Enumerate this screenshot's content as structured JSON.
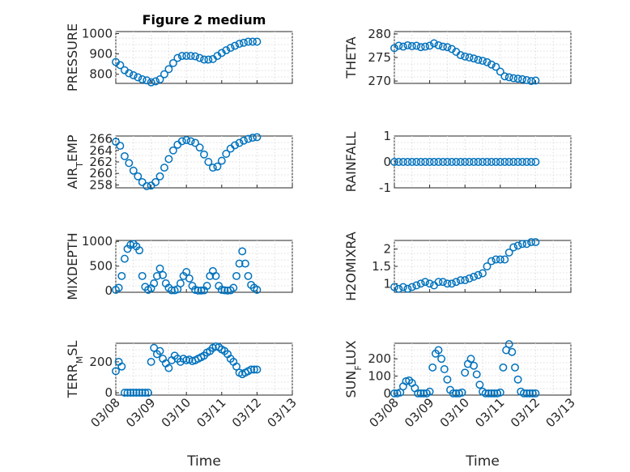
{
  "title": "Figure 2 medium",
  "xlabel": "Time",
  "x_ticks": [
    "03/08",
    "03/09",
    "03/10",
    "03/11",
    "03/12",
    "03/13"
  ],
  "colors": {
    "marker": "#0072bd",
    "axes": "#262626",
    "grid": "#dcdcdc"
  },
  "chart_data": [
    {
      "type": "scatter",
      "ylabel": "PRESSURE",
      "ylim": [
        755,
        1010
      ],
      "yticks": [
        800,
        900,
        1000
      ],
      "grid": true,
      "series": [
        {
          "x": [
            "03/08 00:00",
            "03/08 03:00",
            "03/08 06:00",
            "03/08 09:00",
            "03/08 12:00",
            "03/08 15:00",
            "03/08 18:00",
            "03/08 21:00",
            "03/09 00:00",
            "03/09 03:00",
            "03/09 06:00",
            "03/09 09:00",
            "03/09 12:00",
            "03/09 15:00",
            "03/09 18:00",
            "03/09 21:00",
            "03/10 00:00",
            "03/10 03:00",
            "03/10 06:00",
            "03/10 09:00",
            "03/10 12:00",
            "03/10 15:00",
            "03/10 18:00",
            "03/10 21:00",
            "03/11 00:00",
            "03/11 03:00",
            "03/11 06:00",
            "03/11 09:00",
            "03/11 12:00",
            "03/11 15:00",
            "03/11 18:00",
            "03/11 21:00",
            "03/12 00:00"
          ],
          "y": [
            860,
            845,
            820,
            805,
            795,
            785,
            775,
            770,
            760,
            765,
            775,
            800,
            825,
            855,
            880,
            890,
            890,
            890,
            888,
            880,
            872,
            872,
            875,
            890,
            905,
            918,
            930,
            940,
            950,
            955,
            960,
            960,
            960
          ]
        }
      ]
    },
    {
      "type": "scatter",
      "ylabel": "THETA",
      "ylim": [
        269.5,
        280.5
      ],
      "yticks": [
        270,
        275,
        280
      ],
      "grid": true,
      "series": [
        {
          "x": [
            "03/08 00:00",
            "03/08 03:00",
            "03/08 06:00",
            "03/08 09:00",
            "03/08 12:00",
            "03/08 15:00",
            "03/08 18:00",
            "03/08 21:00",
            "03/09 00:00",
            "03/09 03:00",
            "03/09 06:00",
            "03/09 09:00",
            "03/09 12:00",
            "03/09 15:00",
            "03/09 18:00",
            "03/09 21:00",
            "03/10 00:00",
            "03/10 03:00",
            "03/10 06:00",
            "03/10 09:00",
            "03/10 12:00",
            "03/10 15:00",
            "03/10 18:00",
            "03/10 21:00",
            "03/11 00:00",
            "03/11 03:00",
            "03/11 06:00",
            "03/11 09:00",
            "03/11 12:00",
            "03/11 15:00",
            "03/11 18:00",
            "03/11 21:00",
            "03/12 00:00"
          ],
          "y": [
            277,
            277.5,
            277.3,
            277.6,
            277.4,
            277.5,
            277.2,
            277.3,
            277.5,
            278,
            277.6,
            277.3,
            277.2,
            276.8,
            276.2,
            275.5,
            275.2,
            275,
            274.8,
            274.5,
            274.3,
            274,
            273.5,
            273,
            272,
            271,
            270.8,
            270.6,
            270.5,
            270.4,
            270.2,
            270,
            270.1
          ]
        }
      ]
    },
    {
      "type": "scatter",
      "ylabel": "AIR_TEMP",
      "ylim": [
        257.5,
        266.5
      ],
      "yticks": [
        258,
        260,
        262,
        264,
        266
      ],
      "grid": true,
      "series": [
        {
          "x": [
            "03/08 00:00",
            "03/08 03:00",
            "03/08 06:00",
            "03/08 09:00",
            "03/08 12:00",
            "03/08 15:00",
            "03/08 18:00",
            "03/08 21:00",
            "03/09 00:00",
            "03/09 03:00",
            "03/09 06:00",
            "03/09 09:00",
            "03/09 12:00",
            "03/09 15:00",
            "03/09 18:00",
            "03/09 21:00",
            "03/10 00:00",
            "03/10 03:00",
            "03/10 06:00",
            "03/10 09:00",
            "03/10 12:00",
            "03/10 15:00",
            "03/10 18:00",
            "03/10 21:00",
            "03/11 00:00",
            "03/11 03:00",
            "03/11 06:00",
            "03/11 09:00",
            "03/11 12:00",
            "03/11 15:00",
            "03/11 18:00",
            "03/11 21:00",
            "03/12 00:00"
          ],
          "y": [
            265.5,
            264.8,
            263,
            261.8,
            260.5,
            259.5,
            258.5,
            257.8,
            257.9,
            258.5,
            259.5,
            261,
            262.5,
            264,
            265,
            265.6,
            265.8,
            265.6,
            265.3,
            264.5,
            263.3,
            262,
            261,
            261.2,
            262.2,
            263.4,
            264.3,
            264.9,
            265.3,
            265.7,
            266,
            266.2,
            266.3
          ]
        }
      ]
    },
    {
      "type": "scatter",
      "ylabel": "RAINFALL",
      "ylim": [
        -1,
        1
      ],
      "yticks": [
        -1,
        0,
        1
      ],
      "grid": true,
      "series": [
        {
          "x": [
            "03/08 00:00",
            "03/08 03:00",
            "03/08 06:00",
            "03/08 09:00",
            "03/08 12:00",
            "03/08 15:00",
            "03/08 18:00",
            "03/08 21:00",
            "03/09 00:00",
            "03/09 03:00",
            "03/09 06:00",
            "03/09 09:00",
            "03/09 12:00",
            "03/09 15:00",
            "03/09 18:00",
            "03/09 21:00",
            "03/10 00:00",
            "03/10 03:00",
            "03/10 06:00",
            "03/10 09:00",
            "03/10 12:00",
            "03/10 15:00",
            "03/10 18:00",
            "03/10 21:00",
            "03/11 00:00",
            "03/11 03:00",
            "03/11 06:00",
            "03/11 09:00",
            "03/11 12:00",
            "03/11 15:00",
            "03/11 18:00",
            "03/11 21:00",
            "03/12 00:00"
          ],
          "y": [
            0,
            0,
            0,
            0,
            0,
            0,
            0,
            0,
            0,
            0,
            0,
            0,
            0,
            0,
            0,
            0,
            0,
            0,
            0,
            0,
            0,
            0,
            0,
            0,
            0,
            0,
            0,
            0,
            0,
            0,
            0,
            0,
            0
          ]
        }
      ]
    },
    {
      "type": "scatter",
      "ylabel": "MIXDEPTH",
      "ylim": [
        -30,
        1020
      ],
      "yticks": [
        0,
        500,
        1000
      ],
      "grid": true,
      "series": [
        {
          "x": [
            "03/08 00:00",
            "03/08 02:00",
            "03/08 04:00",
            "03/08 06:00",
            "03/08 08:00",
            "03/08 10:00",
            "03/08 12:00",
            "03/08 14:00",
            "03/08 16:00",
            "03/08 18:00",
            "03/08 20:00",
            "03/08 22:00",
            "03/09 00:00",
            "03/09 02:00",
            "03/09 04:00",
            "03/09 06:00",
            "03/09 08:00",
            "03/09 10:00",
            "03/09 12:00",
            "03/09 14:00",
            "03/09 16:00",
            "03/09 18:00",
            "03/09 20:00",
            "03/09 22:00",
            "03/10 00:00",
            "03/10 02:00",
            "03/10 04:00",
            "03/10 06:00",
            "03/10 08:00",
            "03/10 10:00",
            "03/10 12:00",
            "03/10 14:00",
            "03/10 16:00",
            "03/10 18:00",
            "03/10 20:00",
            "03/10 22:00",
            "03/11 00:00",
            "03/11 02:00",
            "03/11 04:00",
            "03/11 06:00",
            "03/11 08:00",
            "03/11 10:00",
            "03/11 12:00",
            "03/11 14:00",
            "03/11 16:00",
            "03/11 18:00",
            "03/11 20:00",
            "03/11 22:00",
            "03/12 00:00"
          ],
          "y": [
            20,
            60,
            300,
            650,
            850,
            930,
            950,
            900,
            820,
            300,
            80,
            20,
            50,
            150,
            300,
            450,
            320,
            150,
            60,
            10,
            10,
            30,
            150,
            300,
            380,
            250,
            100,
            20,
            5,
            5,
            10,
            100,
            300,
            400,
            300,
            100,
            20,
            10,
            5,
            10,
            60,
            300,
            550,
            800,
            550,
            300,
            120,
            60,
            20
          ]
        }
      ]
    },
    {
      "type": "scatter",
      "ylabel": "H2OMIXRA",
      "ylim": [
        0.75,
        2.25
      ],
      "yticks": [
        1,
        1.5,
        2
      ],
      "grid": true,
      "series": [
        {
          "x": [
            "03/08 00:00",
            "03/08 03:00",
            "03/08 06:00",
            "03/08 09:00",
            "03/08 12:00",
            "03/08 15:00",
            "03/08 18:00",
            "03/08 21:00",
            "03/09 00:00",
            "03/09 03:00",
            "03/09 06:00",
            "03/09 09:00",
            "03/09 12:00",
            "03/09 15:00",
            "03/09 18:00",
            "03/09 21:00",
            "03/10 00:00",
            "03/10 03:00",
            "03/10 06:00",
            "03/10 09:00",
            "03/10 12:00",
            "03/10 15:00",
            "03/10 18:00",
            "03/10 21:00",
            "03/11 00:00",
            "03/11 03:00",
            "03/11 06:00",
            "03/11 09:00",
            "03/11 12:00",
            "03/11 15:00",
            "03/11 18:00",
            "03/11 21:00",
            "03/12 00:00"
          ],
          "y": [
            0.9,
            0.85,
            0.9,
            0.85,
            0.9,
            0.95,
            1.0,
            1.05,
            1.0,
            0.95,
            1.05,
            1.05,
            1.0,
            1.0,
            1.05,
            1.1,
            1.1,
            1.15,
            1.2,
            1.25,
            1.3,
            1.5,
            1.65,
            1.7,
            1.7,
            1.7,
            1.9,
            2.05,
            2.1,
            2.15,
            2.15,
            2.2,
            2.2
          ]
        }
      ]
    },
    {
      "type": "scatter",
      "ylabel": "TERR_MSL",
      "ylim": [
        -15,
        320
      ],
      "yticks": [
        0,
        200
      ],
      "grid": true,
      "series": [
        {
          "x": [
            "03/08 00:00",
            "03/08 02:00",
            "03/08 04:00",
            "03/08 06:00",
            "03/08 08:00",
            "03/08 10:00",
            "03/08 12:00",
            "03/08 14:00",
            "03/08 16:00",
            "03/08 18:00",
            "03/08 20:00",
            "03/08 22:00",
            "03/09 00:00",
            "03/09 02:00",
            "03/09 04:00",
            "03/09 06:00",
            "03/09 08:00",
            "03/09 10:00",
            "03/09 12:00",
            "03/09 14:00",
            "03/09 16:00",
            "03/09 18:00",
            "03/09 20:00",
            "03/09 22:00",
            "03/10 00:00",
            "03/10 02:00",
            "03/10 04:00",
            "03/10 06:00",
            "03/10 08:00",
            "03/10 10:00",
            "03/10 12:00",
            "03/10 14:00",
            "03/10 16:00",
            "03/10 18:00",
            "03/10 20:00",
            "03/10 22:00",
            "03/11 00:00",
            "03/11 02:00",
            "03/11 04:00",
            "03/11 06:00",
            "03/11 08:00",
            "03/11 10:00",
            "03/11 12:00",
            "03/11 14:00",
            "03/11 16:00",
            "03/11 18:00",
            "03/11 20:00",
            "03/11 22:00",
            "03/12 00:00"
          ],
          "y": [
            140,
            200,
            170,
            0,
            0,
            0,
            0,
            0,
            0,
            0,
            0,
            0,
            200,
            290,
            250,
            270,
            220,
            190,
            160,
            210,
            240,
            220,
            200,
            220,
            210,
            215,
            205,
            210,
            220,
            230,
            240,
            260,
            270,
            290,
            300,
            295,
            280,
            270,
            250,
            220,
            200,
            170,
            130,
            120,
            130,
            140,
            150,
            150,
            150
          ]
        }
      ]
    },
    {
      "type": "scatter",
      "ylabel": "SUN_FLUX",
      "ylim": [
        -10,
        290
      ],
      "yticks": [
        0,
        100,
        200
      ],
      "grid": true,
      "series": [
        {
          "x": [
            "03/08 00:00",
            "03/08 02:00",
            "03/08 04:00",
            "03/08 06:00",
            "03/08 08:00",
            "03/08 10:00",
            "03/08 12:00",
            "03/08 14:00",
            "03/08 16:00",
            "03/08 18:00",
            "03/08 20:00",
            "03/08 22:00",
            "03/09 00:00",
            "03/09 02:00",
            "03/09 04:00",
            "03/09 06:00",
            "03/09 08:00",
            "03/09 10:00",
            "03/09 12:00",
            "03/09 14:00",
            "03/09 16:00",
            "03/09 18:00",
            "03/09 20:00",
            "03/09 22:00",
            "03/10 00:00",
            "03/10 02:00",
            "03/10 04:00",
            "03/10 06:00",
            "03/10 08:00",
            "03/10 10:00",
            "03/10 12:00",
            "03/10 14:00",
            "03/10 16:00",
            "03/10 18:00",
            "03/10 20:00",
            "03/10 22:00",
            "03/11 00:00",
            "03/11 02:00",
            "03/11 04:00",
            "03/11 06:00",
            "03/11 08:00",
            "03/11 10:00",
            "03/11 12:00",
            "03/11 14:00",
            "03/11 16:00",
            "03/11 18:00",
            "03/11 20:00",
            "03/11 22:00",
            "03/12 00:00"
          ],
          "y": [
            0,
            0,
            5,
            40,
            70,
            75,
            60,
            30,
            0,
            0,
            0,
            0,
            10,
            150,
            230,
            250,
            200,
            140,
            80,
            20,
            0,
            0,
            0,
            5,
            120,
            170,
            200,
            160,
            110,
            50,
            10,
            0,
            0,
            0,
            0,
            0,
            5,
            150,
            250,
            285,
            240,
            150,
            80,
            10,
            0,
            0,
            0,
            0,
            0
          ]
        }
      ]
    }
  ]
}
